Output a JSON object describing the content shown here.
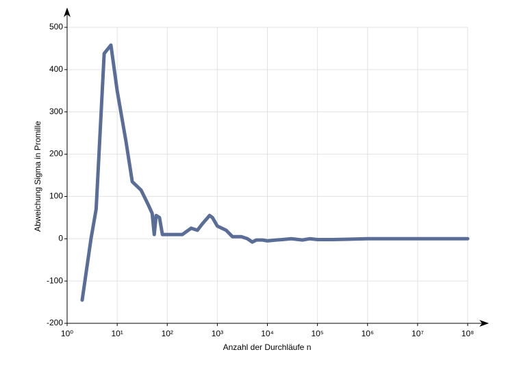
{
  "chart_data": {
    "type": "line",
    "x_label": "Anzahl der Durchläufe n",
    "y_label": "Abweichung Sigma in Promille",
    "x_scale": "log",
    "grid": true,
    "xlim": [
      1,
      100000000
    ],
    "xticks": [
      {
        "value": 1,
        "label": "10⁰"
      },
      {
        "value": 10,
        "label": "10¹"
      },
      {
        "value": 100,
        "label": "10²"
      },
      {
        "value": 1000,
        "label": "10³"
      },
      {
        "value": 10000,
        "label": "10⁴"
      },
      {
        "value": 100000,
        "label": "10⁵"
      },
      {
        "value": 1000000,
        "label": "10⁶"
      },
      {
        "value": 10000000,
        "label": "10⁷"
      },
      {
        "value": 100000000,
        "label": "10⁸"
      }
    ],
    "ylim": [
      -200,
      500
    ],
    "yticks": [
      -200,
      -100,
      0,
      100,
      200,
      300,
      400,
      500
    ],
    "x": [
      2,
      3,
      3.8,
      5.5,
      7.5,
      10,
      15,
      20,
      30,
      40,
      50,
      55,
      60,
      70,
      80,
      100,
      150,
      200,
      300,
      400,
      500,
      700,
      800,
      1000,
      1500,
      2000,
      3000,
      4000,
      5000,
      6000,
      8000,
      10000,
      15000,
      20000,
      30000,
      50000,
      70000,
      100000,
      200000,
      1000000,
      10000000,
      100000000
    ],
    "series": [
      {
        "color": "#5a6d96",
        "values": [
          -145,
          0,
          70,
          438,
          458,
          350,
          230,
          135,
          115,
          85,
          60,
          10,
          55,
          50,
          10,
          10,
          10,
          10,
          25,
          20,
          35,
          55,
          50,
          30,
          20,
          5,
          5,
          0,
          -8,
          -3,
          -3,
          -5,
          -3,
          -2,
          0,
          -3,
          0,
          -2,
          -2,
          0,
          0,
          0
        ]
      }
    ]
  }
}
